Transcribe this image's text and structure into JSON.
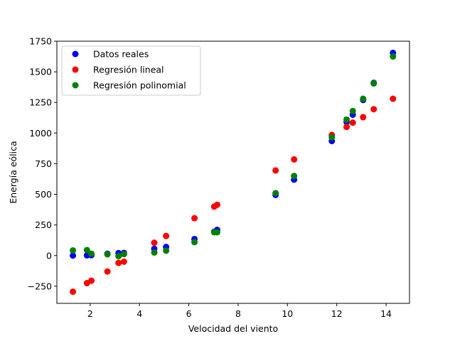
{
  "chart_data": {
    "type": "scatter",
    "xlabel": "Velocidad del viento",
    "ylabel": "Energía eólica",
    "xlim": [
      0.65,
      14.95
    ],
    "ylim": [
      -390,
      1750
    ],
    "xticks": [
      2,
      4,
      6,
      8,
      10,
      12,
      14
    ],
    "yticks": [
      -250,
      0,
      250,
      500,
      750,
      1000,
      1250,
      1500,
      1750
    ],
    "ytick_labels": [
      "−250",
      "0",
      "250",
      "500",
      "750",
      "1000",
      "1250",
      "1500",
      "1750"
    ],
    "grid": false,
    "legend_position": "upper-left",
    "series": [
      {
        "name": "Datos reales",
        "color": "#0000ff",
        "x": [
          1.3,
          1.87,
          2.05,
          2.7,
          3.15,
          3.37,
          4.6,
          5.08,
          6.23,
          7.03,
          7.15,
          9.52,
          10.27,
          11.8,
          12.4,
          12.65,
          13.07,
          13.5,
          14.28
        ],
        "y": [
          0,
          2,
          3,
          15,
          20,
          22,
          55,
          70,
          135,
          195,
          210,
          495,
          620,
          935,
          1090,
          1150,
          1270,
          1410,
          1655
        ]
      },
      {
        "name": "Regresión lineal",
        "color": "#ff0000",
        "x": [
          1.3,
          1.87,
          2.05,
          2.7,
          3.15,
          3.37,
          4.6,
          5.08,
          6.23,
          7.03,
          7.15,
          9.52,
          10.27,
          11.8,
          12.4,
          12.65,
          13.07,
          13.5,
          14.28
        ],
        "y": [
          -295,
          -225,
          -205,
          -130,
          -60,
          -50,
          105,
          160,
          305,
          400,
          415,
          695,
          785,
          985,
          1050,
          1085,
          1130,
          1195,
          1280
        ]
      },
      {
        "name": "Regresión polinomial",
        "color": "#008000",
        "x": [
          1.3,
          1.87,
          2.05,
          2.7,
          3.15,
          3.37,
          4.6,
          5.08,
          6.23,
          7.03,
          7.15,
          9.52,
          10.27,
          11.8,
          12.4,
          12.65,
          13.07,
          13.5,
          14.28
        ],
        "y": [
          42,
          45,
          15,
          10,
          -5,
          12,
          25,
          40,
          110,
          190,
          190,
          510,
          650,
          965,
          1110,
          1180,
          1280,
          1405,
          1625
        ]
      }
    ]
  }
}
